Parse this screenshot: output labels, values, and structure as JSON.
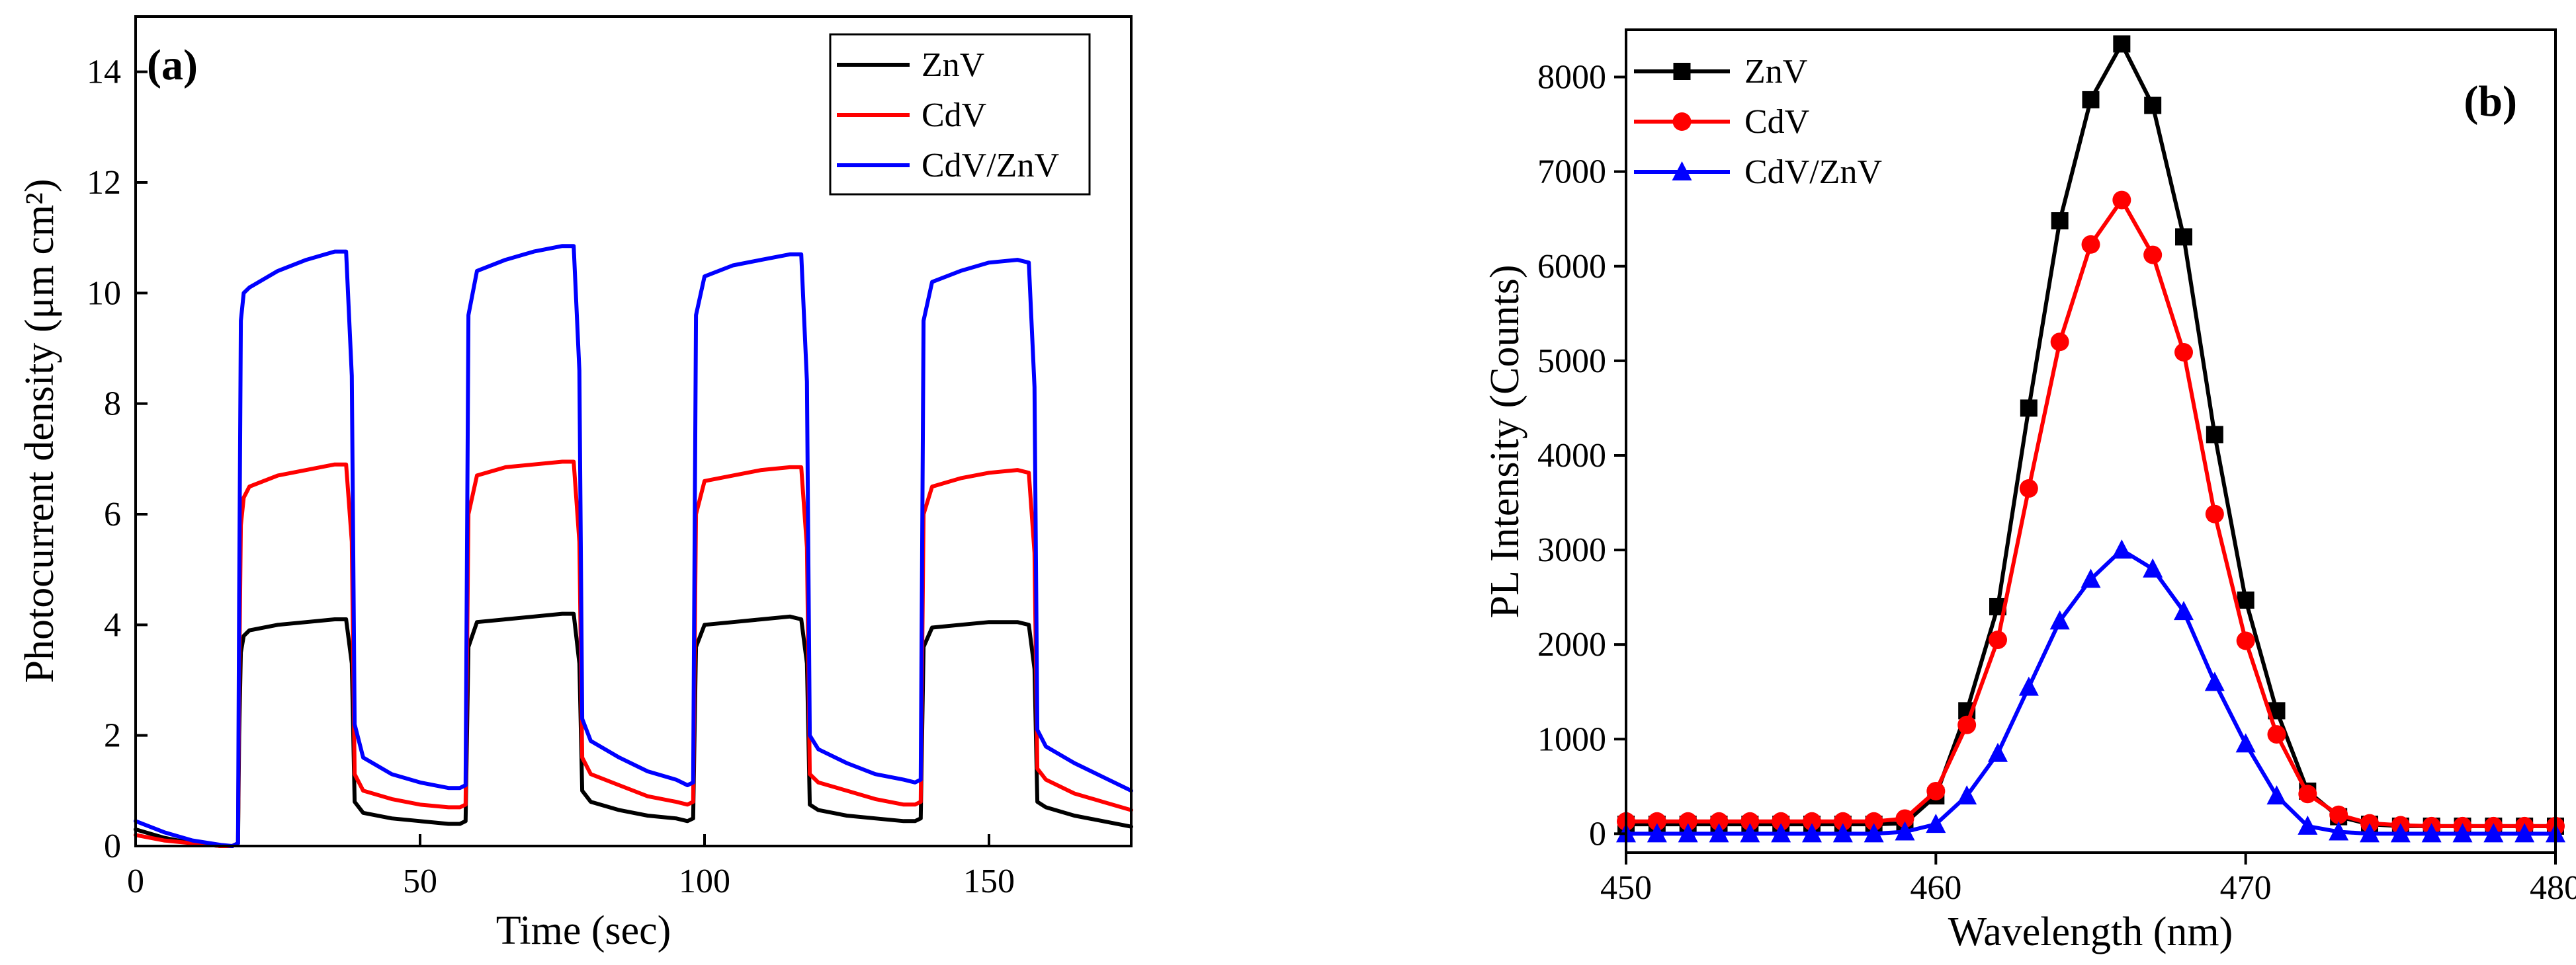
{
  "chart_data": [
    {
      "type": "line",
      "panel_label": "(a)",
      "xlabel": "Time (sec)",
      "ylabel": "Photocurrent density (μm cm²)",
      "xlim": [
        0,
        175
      ],
      "ylim": [
        0,
        15
      ],
      "xticks": [
        0,
        50,
        100,
        150
      ],
      "yticks": [
        0,
        2,
        4,
        6,
        8,
        10,
        12,
        14
      ],
      "legend_position": "top-right",
      "series": [
        {
          "name": "ZnV",
          "color": "#000000",
          "x": [
            0,
            5,
            10,
            15,
            17,
            18,
            18.2,
            18.5,
            19,
            20,
            25,
            30,
            35,
            37,
            38,
            38.5,
            40,
            45,
            50,
            55,
            57,
            58,
            58.5,
            60,
            65,
            70,
            75,
            77,
            78,
            78.5,
            80,
            85,
            90,
            95,
            97,
            98,
            98.5,
            100,
            105,
            110,
            115,
            117,
            118,
            118.5,
            120,
            125,
            130,
            135,
            137,
            138,
            138.5,
            140,
            145,
            150,
            155,
            157,
            158,
            158.5,
            160,
            165,
            170,
            175
          ],
          "y": [
            0.3,
            0.15,
            0.05,
            0,
            0,
            0.05,
            2.0,
            3.5,
            3.8,
            3.9,
            4.0,
            4.05,
            4.1,
            4.1,
            3.3,
            0.8,
            0.6,
            0.5,
            0.45,
            0.4,
            0.4,
            0.45,
            3.6,
            4.05,
            4.1,
            4.15,
            4.2,
            4.2,
            3.3,
            1.0,
            0.8,
            0.65,
            0.55,
            0.5,
            0.45,
            0.5,
            3.6,
            4.0,
            4.05,
            4.1,
            4.15,
            4.1,
            3.3,
            0.75,
            0.65,
            0.55,
            0.5,
            0.45,
            0.45,
            0.5,
            3.6,
            3.95,
            4.0,
            4.05,
            4.05,
            4.0,
            3.2,
            0.8,
            0.7,
            0.55,
            0.45,
            0.35
          ]
        },
        {
          "name": "CdV",
          "color": "#ff0000",
          "x": [
            0,
            5,
            10,
            15,
            17,
            18,
            18.2,
            18.5,
            19,
            20,
            25,
            30,
            35,
            37,
            38,
            38.5,
            40,
            45,
            50,
            55,
            57,
            58,
            58.5,
            60,
            65,
            70,
            75,
            77,
            78,
            78.5,
            80,
            85,
            90,
            95,
            97,
            98,
            98.5,
            100,
            105,
            110,
            115,
            117,
            118,
            118.5,
            120,
            125,
            130,
            135,
            137,
            138,
            138.5,
            140,
            145,
            150,
            155,
            157,
            158,
            158.5,
            160,
            165,
            170,
            175
          ],
          "y": [
            0.2,
            0.1,
            0.05,
            0,
            0,
            0.05,
            3.0,
            5.8,
            6.3,
            6.5,
            6.7,
            6.8,
            6.9,
            6.9,
            5.5,
            1.3,
            1.0,
            0.85,
            0.75,
            0.7,
            0.7,
            0.75,
            6.0,
            6.7,
            6.85,
            6.9,
            6.95,
            6.95,
            5.5,
            1.6,
            1.3,
            1.1,
            0.9,
            0.8,
            0.75,
            0.8,
            6.0,
            6.6,
            6.7,
            6.8,
            6.85,
            6.85,
            5.4,
            1.3,
            1.15,
            1.0,
            0.85,
            0.75,
            0.75,
            0.8,
            6.0,
            6.5,
            6.65,
            6.75,
            6.8,
            6.75,
            5.3,
            1.4,
            1.2,
            0.95,
            0.8,
            0.65
          ]
        },
        {
          "name": "CdV/ZnV",
          "color": "#0000ff",
          "x": [
            0,
            5,
            10,
            15,
            17,
            18,
            18.2,
            18.5,
            19,
            20,
            25,
            30,
            35,
            37,
            38,
            38.5,
            40,
            45,
            50,
            55,
            57,
            58,
            58.5,
            60,
            65,
            70,
            75,
            77,
            78,
            78.5,
            80,
            85,
            90,
            95,
            97,
            98,
            98.5,
            100,
            105,
            110,
            115,
            117,
            118,
            118.5,
            120,
            125,
            130,
            135,
            137,
            138,
            138.5,
            140,
            145,
            150,
            155,
            157,
            158,
            158.5,
            160,
            165,
            170,
            175
          ],
          "y": [
            0.45,
            0.25,
            0.1,
            0.02,
            0,
            0.05,
            4.5,
            9.5,
            10.0,
            10.1,
            10.4,
            10.6,
            10.75,
            10.75,
            8.5,
            2.2,
            1.6,
            1.3,
            1.15,
            1.05,
            1.05,
            1.1,
            9.6,
            10.4,
            10.6,
            10.75,
            10.85,
            10.85,
            8.6,
            2.3,
            1.9,
            1.6,
            1.35,
            1.2,
            1.1,
            1.15,
            9.6,
            10.3,
            10.5,
            10.6,
            10.7,
            10.7,
            8.4,
            2.0,
            1.75,
            1.5,
            1.3,
            1.2,
            1.15,
            1.2,
            9.5,
            10.2,
            10.4,
            10.55,
            10.6,
            10.55,
            8.3,
            2.1,
            1.8,
            1.5,
            1.25,
            1.0
          ]
        }
      ]
    },
    {
      "type": "line",
      "panel_label": "(b)",
      "xlabel": "Wavelength (nm)",
      "ylabel": "PL Intensity (Counts)",
      "xlim": [
        450,
        480
      ],
      "ylim": [
        -200,
        8500
      ],
      "xticks": [
        450,
        460,
        470,
        480
      ],
      "yticks": [
        0,
        1000,
        2000,
        3000,
        4000,
        5000,
        6000,
        7000,
        8000
      ],
      "legend_position": "top-left",
      "series": [
        {
          "name": "ZnV",
          "color": "#000000",
          "marker": "square",
          "x": [
            450,
            451,
            452,
            453,
            454,
            455,
            456,
            457,
            458,
            459,
            460,
            461,
            462,
            463,
            464,
            465,
            466,
            467,
            468,
            469,
            470,
            471,
            472,
            473,
            474,
            475,
            476,
            477,
            478,
            479,
            480
          ],
          "y": [
            100,
            100,
            100,
            100,
            100,
            100,
            100,
            100,
            100,
            110,
            400,
            1300,
            2400,
            4500,
            6480,
            7760,
            8350,
            7700,
            6310,
            4220,
            2470,
            1300,
            450,
            180,
            100,
            80,
            80,
            80,
            80,
            80,
            80
          ]
        },
        {
          "name": "CdV",
          "color": "#ff0000",
          "marker": "circle",
          "x": [
            450,
            451,
            452,
            453,
            454,
            455,
            456,
            457,
            458,
            459,
            460,
            461,
            462,
            463,
            464,
            465,
            466,
            467,
            468,
            469,
            470,
            471,
            472,
            473,
            474,
            475,
            476,
            477,
            478,
            479,
            480
          ],
          "y": [
            130,
            130,
            130,
            130,
            130,
            130,
            130,
            130,
            130,
            160,
            450,
            1150,
            2050,
            3650,
            5200,
            6230,
            6700,
            6120,
            5090,
            3380,
            2040,
            1050,
            420,
            200,
            110,
            90,
            80,
            80,
            80,
            80,
            80
          ]
        },
        {
          "name": "CdV/ZnV",
          "color": "#0000ff",
          "marker": "triangle",
          "x": [
            450,
            451,
            452,
            453,
            454,
            455,
            456,
            457,
            458,
            459,
            460,
            461,
            462,
            463,
            464,
            465,
            466,
            467,
            468,
            469,
            470,
            471,
            472,
            473,
            474,
            475,
            476,
            477,
            478,
            479,
            480
          ],
          "y": [
            0,
            0,
            0,
            0,
            0,
            0,
            0,
            0,
            0,
            20,
            100,
            400,
            850,
            1550,
            2250,
            2690,
            3000,
            2800,
            2350,
            1600,
            950,
            400,
            80,
            20,
            0,
            0,
            0,
            0,
            0,
            0,
            0
          ]
        }
      ]
    }
  ]
}
